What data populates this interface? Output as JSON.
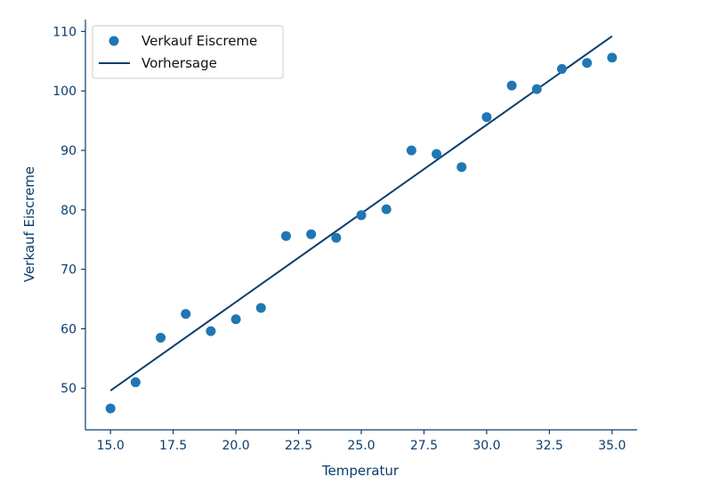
{
  "chart_data": {
    "type": "scatter",
    "xlabel": "Temperatur",
    "ylabel": "Verkauf Eiscreme",
    "xlim": [
      14.0,
      36.0
    ],
    "ylim": [
      43.0,
      112.0
    ],
    "x_ticks": [
      "15.0",
      "17.5",
      "20.0",
      "22.5",
      "25.0",
      "27.5",
      "30.0",
      "32.5",
      "35.0"
    ],
    "y_ticks": [
      "50",
      "60",
      "70",
      "80",
      "90",
      "100",
      "110"
    ],
    "grid": false,
    "legend_position": "top-left",
    "series": [
      {
        "name": "Verkauf Eiscreme",
        "kind": "scatter",
        "color": "#1f77b4",
        "points": [
          [
            15,
            46.6
          ],
          [
            16,
            51.0
          ],
          [
            17,
            58.5
          ],
          [
            18,
            62.5
          ],
          [
            19,
            59.6
          ],
          [
            20,
            61.6
          ],
          [
            21,
            63.5
          ],
          [
            22,
            75.6
          ],
          [
            23,
            75.9
          ],
          [
            24,
            75.3
          ],
          [
            25,
            79.1
          ],
          [
            26,
            80.1
          ],
          [
            27,
            90.0
          ],
          [
            28,
            89.4
          ],
          [
            29,
            87.2
          ],
          [
            30,
            95.6
          ],
          [
            31,
            100.9
          ],
          [
            32,
            100.3
          ],
          [
            33,
            103.7
          ],
          [
            34,
            104.7
          ],
          [
            35,
            105.6
          ]
        ]
      },
      {
        "name": "Vorhersage",
        "kind": "line",
        "color": "#063d6e",
        "points": [
          [
            15,
            49.6
          ],
          [
            35,
            109.2
          ]
        ]
      }
    ]
  }
}
